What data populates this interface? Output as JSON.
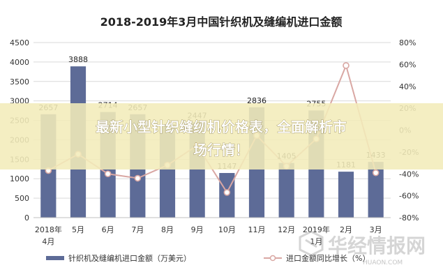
{
  "chart_data": {
    "type": "bar",
    "title": "2018-2019年3月中国针织机及缝编机进口金额",
    "categories": [
      "2018年4月",
      "5月",
      "6月",
      "7月",
      "8月",
      "9月",
      "10月",
      "11月",
      "12月",
      "2019年1月",
      "2月",
      "3月"
    ],
    "category_lines": [
      [
        "2018年",
        "4月"
      ],
      [
        "5月"
      ],
      [
        "6月"
      ],
      [
        "7月"
      ],
      [
        "8月"
      ],
      [
        "9月"
      ],
      [
        "10月"
      ],
      [
        "11月"
      ],
      [
        "12月"
      ],
      [
        "2019年",
        "1月"
      ],
      [
        "2月"
      ],
      [
        "3月"
      ]
    ],
    "series": [
      {
        "name": "针织机及缝编机进口金额（万美元）",
        "type": "bar",
        "axis": "left",
        "color": "#5d6b97",
        "values": [
          2657,
          3888,
          2714,
          2657,
          2400,
          2447,
          1147,
          2836,
          1405,
          2755,
          1181,
          1433
        ],
        "labels": [
          "2657",
          "3888",
          "2714",
          "2657",
          "",
          "2447",
          "1147",
          "2836",
          "1405",
          "2755",
          "1181",
          "1433"
        ]
      },
      {
        "name": "进口金额同比增长（%）",
        "type": "line",
        "axis": "right",
        "color": "#d9a7a3",
        "values": [
          -37,
          -22,
          -40,
          -44,
          -32,
          -14,
          -57,
          -5,
          -33,
          -8,
          59,
          -39
        ]
      }
    ],
    "y_left": {
      "min": 0,
      "max": 4500,
      "step": 500,
      "ticks": [
        "0",
        "500",
        "1000",
        "1500",
        "2000",
        "2500",
        "3000",
        "3500",
        "4000",
        "4500"
      ]
    },
    "y_right": {
      "min": -80,
      "max": 80,
      "step": 20,
      "ticks": [
        "-80%",
        "-60%",
        "-40%",
        "-20%",
        "0%",
        "20%",
        "40%",
        "60%",
        "80%"
      ]
    },
    "grid": true,
    "legend_position": "bottom"
  },
  "overlay": {
    "banner_line1": "最新小型针织缝纫机价格表，全面解析市",
    "banner_line2": "场行情！",
    "watermark_main": "华经情报网",
    "watermark_sub": "HUAON.COM"
  }
}
